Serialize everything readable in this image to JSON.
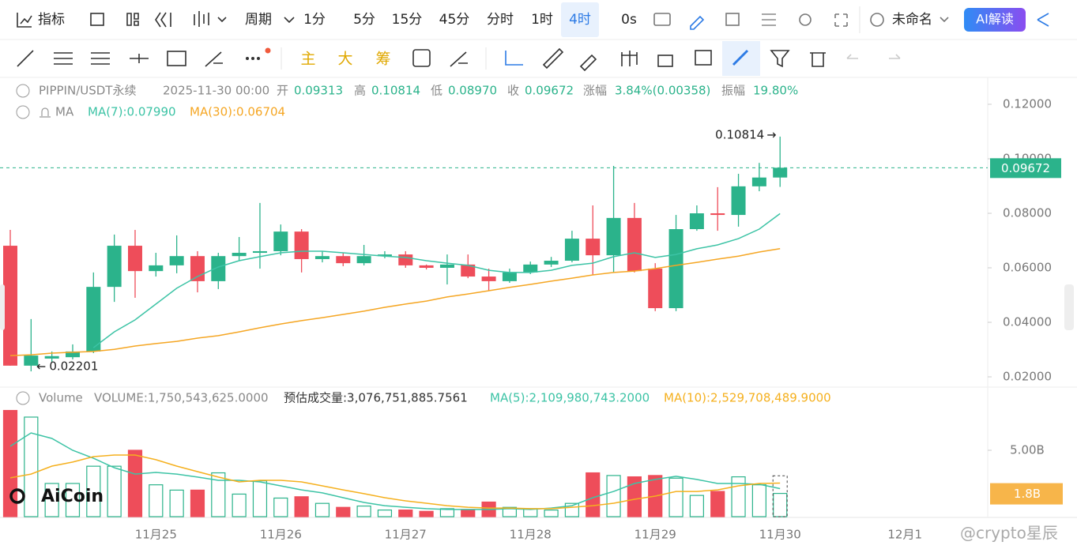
{
  "toolbar": {
    "indicator": "指标",
    "period": "周期",
    "intervals": [
      "1分",
      "5分",
      "15分",
      "45分",
      "分时",
      "1时",
      "4时"
    ],
    "countdown": "0s",
    "layout_name": "未命名",
    "ai_button": "AI解读",
    "chips": [
      "主",
      "大",
      "筹"
    ]
  },
  "info": {
    "symbol": "PIPPIN/USDT永续",
    "time": "2025-11-30 00:00",
    "open_label": "开",
    "open": "0.09313",
    "high_label": "高",
    "high": "0.10814",
    "low_label": "低",
    "low": "0.08970",
    "close_label": "收",
    "close": "0.09672",
    "change_label": "涨幅",
    "change": "3.84%(0.00358)",
    "amp_label": "振幅",
    "amp": "19.80%",
    "ma_label": "MA"
  },
  "watermarks": [
    "AiCoin",
    "@crypto星辰"
  ],
  "chart_data": {
    "type": "candlestick",
    "colors": {
      "up": "#2bb38b",
      "down": "#ee4d5a"
    },
    "categories": [
      null,
      null,
      null,
      null,
      null,
      null,
      null,
      "11月25",
      null,
      null,
      null,
      null,
      null,
      "11月26",
      null,
      null,
      null,
      null,
      null,
      "11月27",
      null,
      null,
      null,
      null,
      null,
      "11月28",
      null,
      null,
      null,
      null,
      null,
      "11月29",
      null,
      null,
      null,
      null,
      null,
      "11月30",
      null,
      null,
      null,
      null,
      null,
      "12月1"
    ],
    "open": [
      0.0681,
      0.0241,
      0.0267,
      0.0272,
      0.0293,
      0.053,
      0.0681,
      0.0588,
      0.0609,
      0.0643,
      0.0551,
      0.0643,
      0.0655,
      0.0661,
      0.0733,
      0.0632,
      0.0643,
      0.0617,
      0.0643,
      0.0649,
      0.0609,
      0.06,
      0.0612,
      0.0568,
      0.0551,
      0.0583,
      0.0612,
      0.0626,
      0.0707,
      0.0646,
      0.0783,
      0.0597,
      0.0452,
      0.0742,
      0.08,
      0.0794,
      0.0899,
      0.09313,
      null,
      null,
      null,
      null,
      null,
      null
    ],
    "high": [
      0.0739,
      0.0412,
      0.0293,
      0.0319,
      0.0583,
      0.0722,
      0.0739,
      0.0655,
      0.0719,
      0.0661,
      0.0655,
      0.0713,
      0.0838,
      0.0759,
      0.0742,
      0.0661,
      0.0655,
      0.0684,
      0.0661,
      0.0661,
      0.0612,
      0.0649,
      0.0649,
      0.0597,
      0.0597,
      0.0623,
      0.064,
      0.0736,
      0.0829,
      0.0974,
      0.0838,
      0.0617,
      0.0794,
      0.0829,
      0.0896,
      0.0945,
      0.0985,
      0.10814,
      null,
      null,
      null,
      null,
      null,
      null
    ],
    "low": [
      0.0241,
      0.02201,
      0.0255,
      0.0264,
      0.0287,
      0.0475,
      0.049,
      0.0568,
      0.058,
      0.051,
      0.0522,
      0.0626,
      0.0597,
      0.0646,
      0.0583,
      0.062,
      0.0606,
      0.0609,
      0.0635,
      0.06,
      0.0594,
      0.0539,
      0.0562,
      0.0516,
      0.0545,
      0.0577,
      0.0603,
      0.062,
      0.0574,
      0.0583,
      0.0583,
      0.0441,
      0.0441,
      0.0736,
      0.0736,
      0.0751,
      0.0881,
      0.0897,
      null,
      null,
      null,
      null,
      null,
      null
    ],
    "close": [
      0.0241,
      0.0278,
      0.0276,
      0.0293,
      0.053,
      0.0681,
      0.0588,
      0.0609,
      0.0643,
      0.0551,
      0.0643,
      0.0655,
      0.0661,
      0.0733,
      0.0632,
      0.0643,
      0.0617,
      0.0643,
      0.0649,
      0.0609,
      0.06,
      0.0612,
      0.0568,
      0.0551,
      0.0583,
      0.0612,
      0.0626,
      0.0707,
      0.0646,
      0.0783,
      0.0588,
      0.0452,
      0.0742,
      0.08,
      0.0794,
      0.0899,
      0.09313,
      0.09672,
      null,
      null,
      null,
      null,
      null,
      null
    ],
    "ylim": [
      0.01623,
      0.12986
    ],
    "yticks": [
      {
        "value": 0.02,
        "label": "0.02000"
      },
      {
        "value": 0.04,
        "label": "0.04000"
      },
      {
        "value": 0.06,
        "label": "0.06000"
      },
      {
        "value": 0.08,
        "label": "0.08000"
      },
      {
        "value": 0.1,
        "label": "0.10000"
      },
      {
        "value": 0.12,
        "label": "0.12000"
      }
    ],
    "series": [
      {
        "name": "MA(7):0.07990",
        "color": "#3cc3a5",
        "values": [
          null,
          null,
          null,
          null,
          0.0307,
          0.0365,
          0.0409,
          0.0467,
          0.0525,
          0.0568,
          0.0603,
          0.0626,
          0.0641,
          0.0655,
          0.0661,
          0.0661,
          0.0655,
          0.0649,
          0.0643,
          0.0638,
          0.0626,
          0.0617,
          0.0609,
          0.0591,
          0.0583,
          0.0583,
          0.0591,
          0.0609,
          0.0617,
          0.0641,
          0.0655,
          0.0638,
          0.0649,
          0.067,
          0.0684,
          0.0707,
          0.0742,
          0.0799,
          null,
          null,
          null,
          null,
          null,
          null
        ]
      },
      {
        "name": "MA(30):0.06704",
        "color": "#f5a623",
        "values": [
          0.0278,
          0.0281,
          0.0287,
          0.029,
          0.0293,
          0.0301,
          0.0313,
          0.0322,
          0.033,
          0.0342,
          0.0351,
          0.0365,
          0.038,
          0.0394,
          0.0406,
          0.0417,
          0.0429,
          0.0441,
          0.0455,
          0.0467,
          0.0478,
          0.0493,
          0.0504,
          0.0516,
          0.0528,
          0.0539,
          0.0551,
          0.0562,
          0.0574,
          0.0583,
          0.0588,
          0.0597,
          0.0609,
          0.062,
          0.0632,
          0.0643,
          0.0658,
          0.06704,
          null,
          null,
          null,
          null,
          null,
          null
        ]
      }
    ],
    "volume": {
      "title": "Volume",
      "current": "VOLUME:1,750,543,625.0000",
      "estimate_text": "预估成交量:3,076,751,885.7561",
      "values": [
        8000000000.0,
        7500000000.0,
        2500000000.0,
        2500000000.0,
        3800000000.0,
        3800000000.0,
        5000000000.0,
        2400000000.0,
        2000000000.0,
        2000000000.0,
        3300000000.0,
        1700000000.0,
        2700000000.0,
        1400000000.0,
        1500000000.0,
        1000000000.0,
        700000000.0,
        800000000.0,
        500000000.0,
        500000000.0,
        400000000.0,
        600000000.0,
        500000000.0,
        1100000000.0,
        700000000.0,
        600000000.0,
        500000000.0,
        1000000000.0,
        3300000000.0,
        3100000000.0,
        3000000000.0,
        3100000000.0,
        2900000000.0,
        1600000000.0,
        1900000000.0,
        3000000000.0,
        2400000000.0,
        1750543625,
        null,
        null,
        null,
        null,
        null,
        null
      ],
      "estimated": 3076751885.7561,
      "last_label": "1.8B",
      "ylim": [
        0,
        9640000000.0
      ],
      "yticks": [
        {
          "value": 5000000000.0,
          "label": "5.00B"
        }
      ],
      "series": [
        {
          "name": "MA(5):2,109,980,743.2000",
          "color": "#3cc3a5",
          "values": [
            5300000000.0,
            6310000000.0,
            5890000000.0,
            5000000000.0,
            4400000000.0,
            3690000000.0,
            3210000000.0,
            3330000000.0,
            3210000000.0,
            2980000000.0,
            2740000000.0,
            2740000000.0,
            2620000000.0,
            2320000000.0,
            2020000000.0,
            1790000000.0,
            1430000000.0,
            1070000000.0,
            830000000.0,
            710000000.0,
            600000000.0,
            540000000.0,
            540000000.0,
            540000000.0,
            600000000.0,
            540000000.0,
            650000000.0,
            830000000.0,
            1430000000.0,
            1900000000.0,
            2500000000.0,
            2800000000.0,
            3040000000.0,
            2800000000.0,
            2500000000.0,
            2500000000.0,
            2440000000.0,
            2109980743.2,
            null,
            null,
            null,
            null,
            null,
            null
          ]
        },
        {
          "name": "MA(10):2,529,708,489.9000",
          "color": "#f5b01e",
          "values": [
            2920000000.0,
            3210000000.0,
            3810000000.0,
            4110000000.0,
            4520000000.0,
            4640000000.0,
            4640000000.0,
            4290000000.0,
            3810000000.0,
            3390000000.0,
            2980000000.0,
            2620000000.0,
            2740000000.0,
            2740000000.0,
            2620000000.0,
            2320000000.0,
            2020000000.0,
            1730000000.0,
            1430000000.0,
            1190000000.0,
            1010000000.0,
            830000000.0,
            710000000.0,
            650000000.0,
            650000000.0,
            600000000.0,
            600000000.0,
            710000000.0,
            830000000.0,
            1010000000.0,
            1310000000.0,
            1550000000.0,
            1900000000.0,
            1900000000.0,
            2020000000.0,
            2320000000.0,
            2500000000.0,
            2529708489.9,
            null,
            null,
            null,
            null,
            null,
            null
          ]
        }
      ]
    }
  }
}
